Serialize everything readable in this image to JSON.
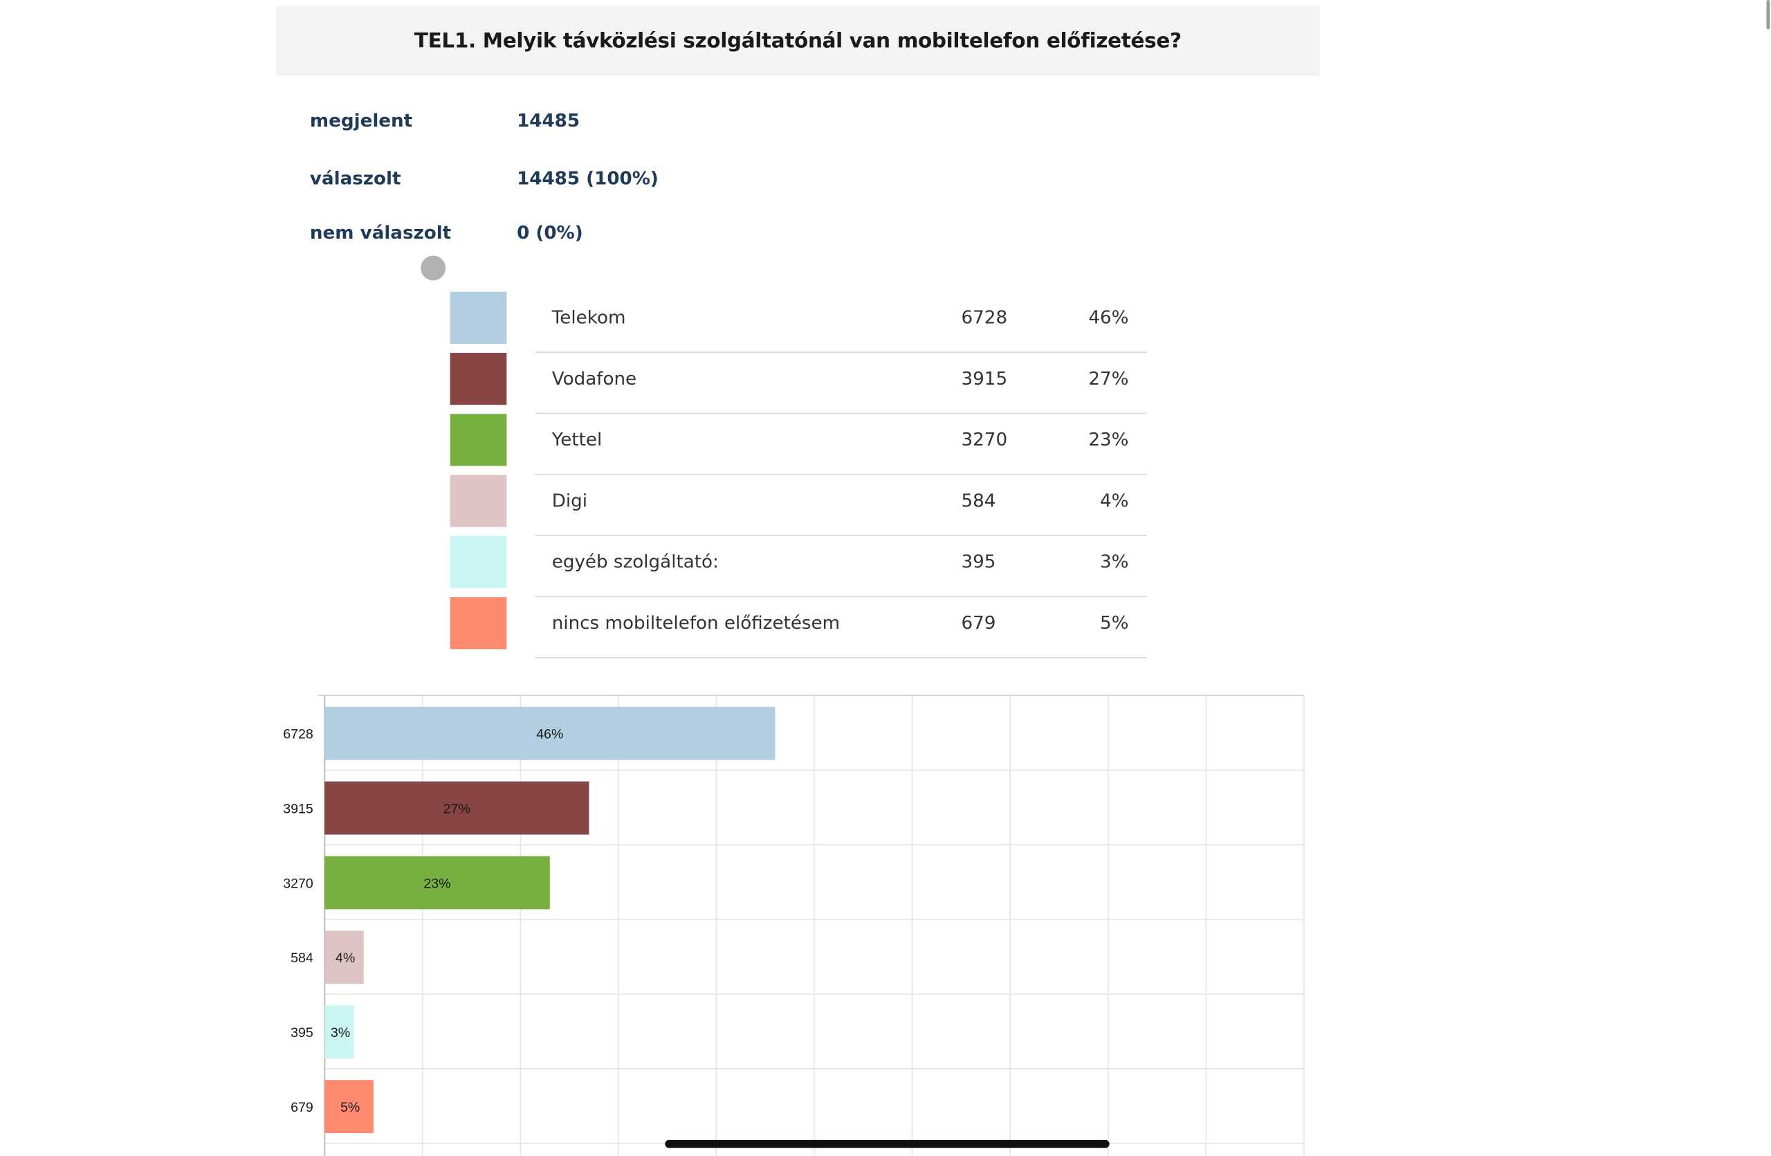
{
  "question": {
    "title": "TEL1. Melyik távközlési szolgáltatónál van mobiltelefon előfizetése?"
  },
  "stats": {
    "shown_label": "megjelent",
    "shown_value": "14485",
    "answered_label": "válaszolt",
    "answered_value": "14485 (100%)",
    "not_answered_label": "nem válaszolt",
    "not_answered_value": "0 (0%)"
  },
  "options": [
    {
      "label": "Telekom",
      "count": "6728",
      "percent": "46%",
      "color": "#b3cde1"
    },
    {
      "label": "Vodafone",
      "count": "3915",
      "percent": "27%",
      "color": "#864442"
    },
    {
      "label": "Yettel",
      "count": "3270",
      "percent": "23%",
      "color": "#76b040"
    },
    {
      "label": "Digi",
      "count": "584",
      "percent": "4%",
      "color": "#dfc4c6"
    },
    {
      "label": "egyéb szolgáltató:",
      "count": "395",
      "percent": "3%",
      "color": "#c9f6f3"
    },
    {
      "label": "nincs mobiltelefon előfizetésem",
      "count": "679",
      "percent": "5%",
      "color": "#fe8b70"
    }
  ],
  "chart_data": {
    "type": "bar",
    "orientation": "horizontal",
    "categories": [
      "6728",
      "3915",
      "3270",
      "584",
      "395",
      "679"
    ],
    "values": [
      46,
      27,
      23,
      4,
      3,
      5
    ],
    "data_labels": [
      "46%",
      "27%",
      "23%",
      "4%",
      "3%",
      "5%"
    ],
    "colors": [
      "#b3cde1",
      "#864442",
      "#76b040",
      "#dfc4c6",
      "#c9f6f3",
      "#fe8b70"
    ],
    "xlim": [
      0,
      100
    ],
    "grid": true,
    "title": "",
    "xlabel": "",
    "ylabel": ""
  }
}
